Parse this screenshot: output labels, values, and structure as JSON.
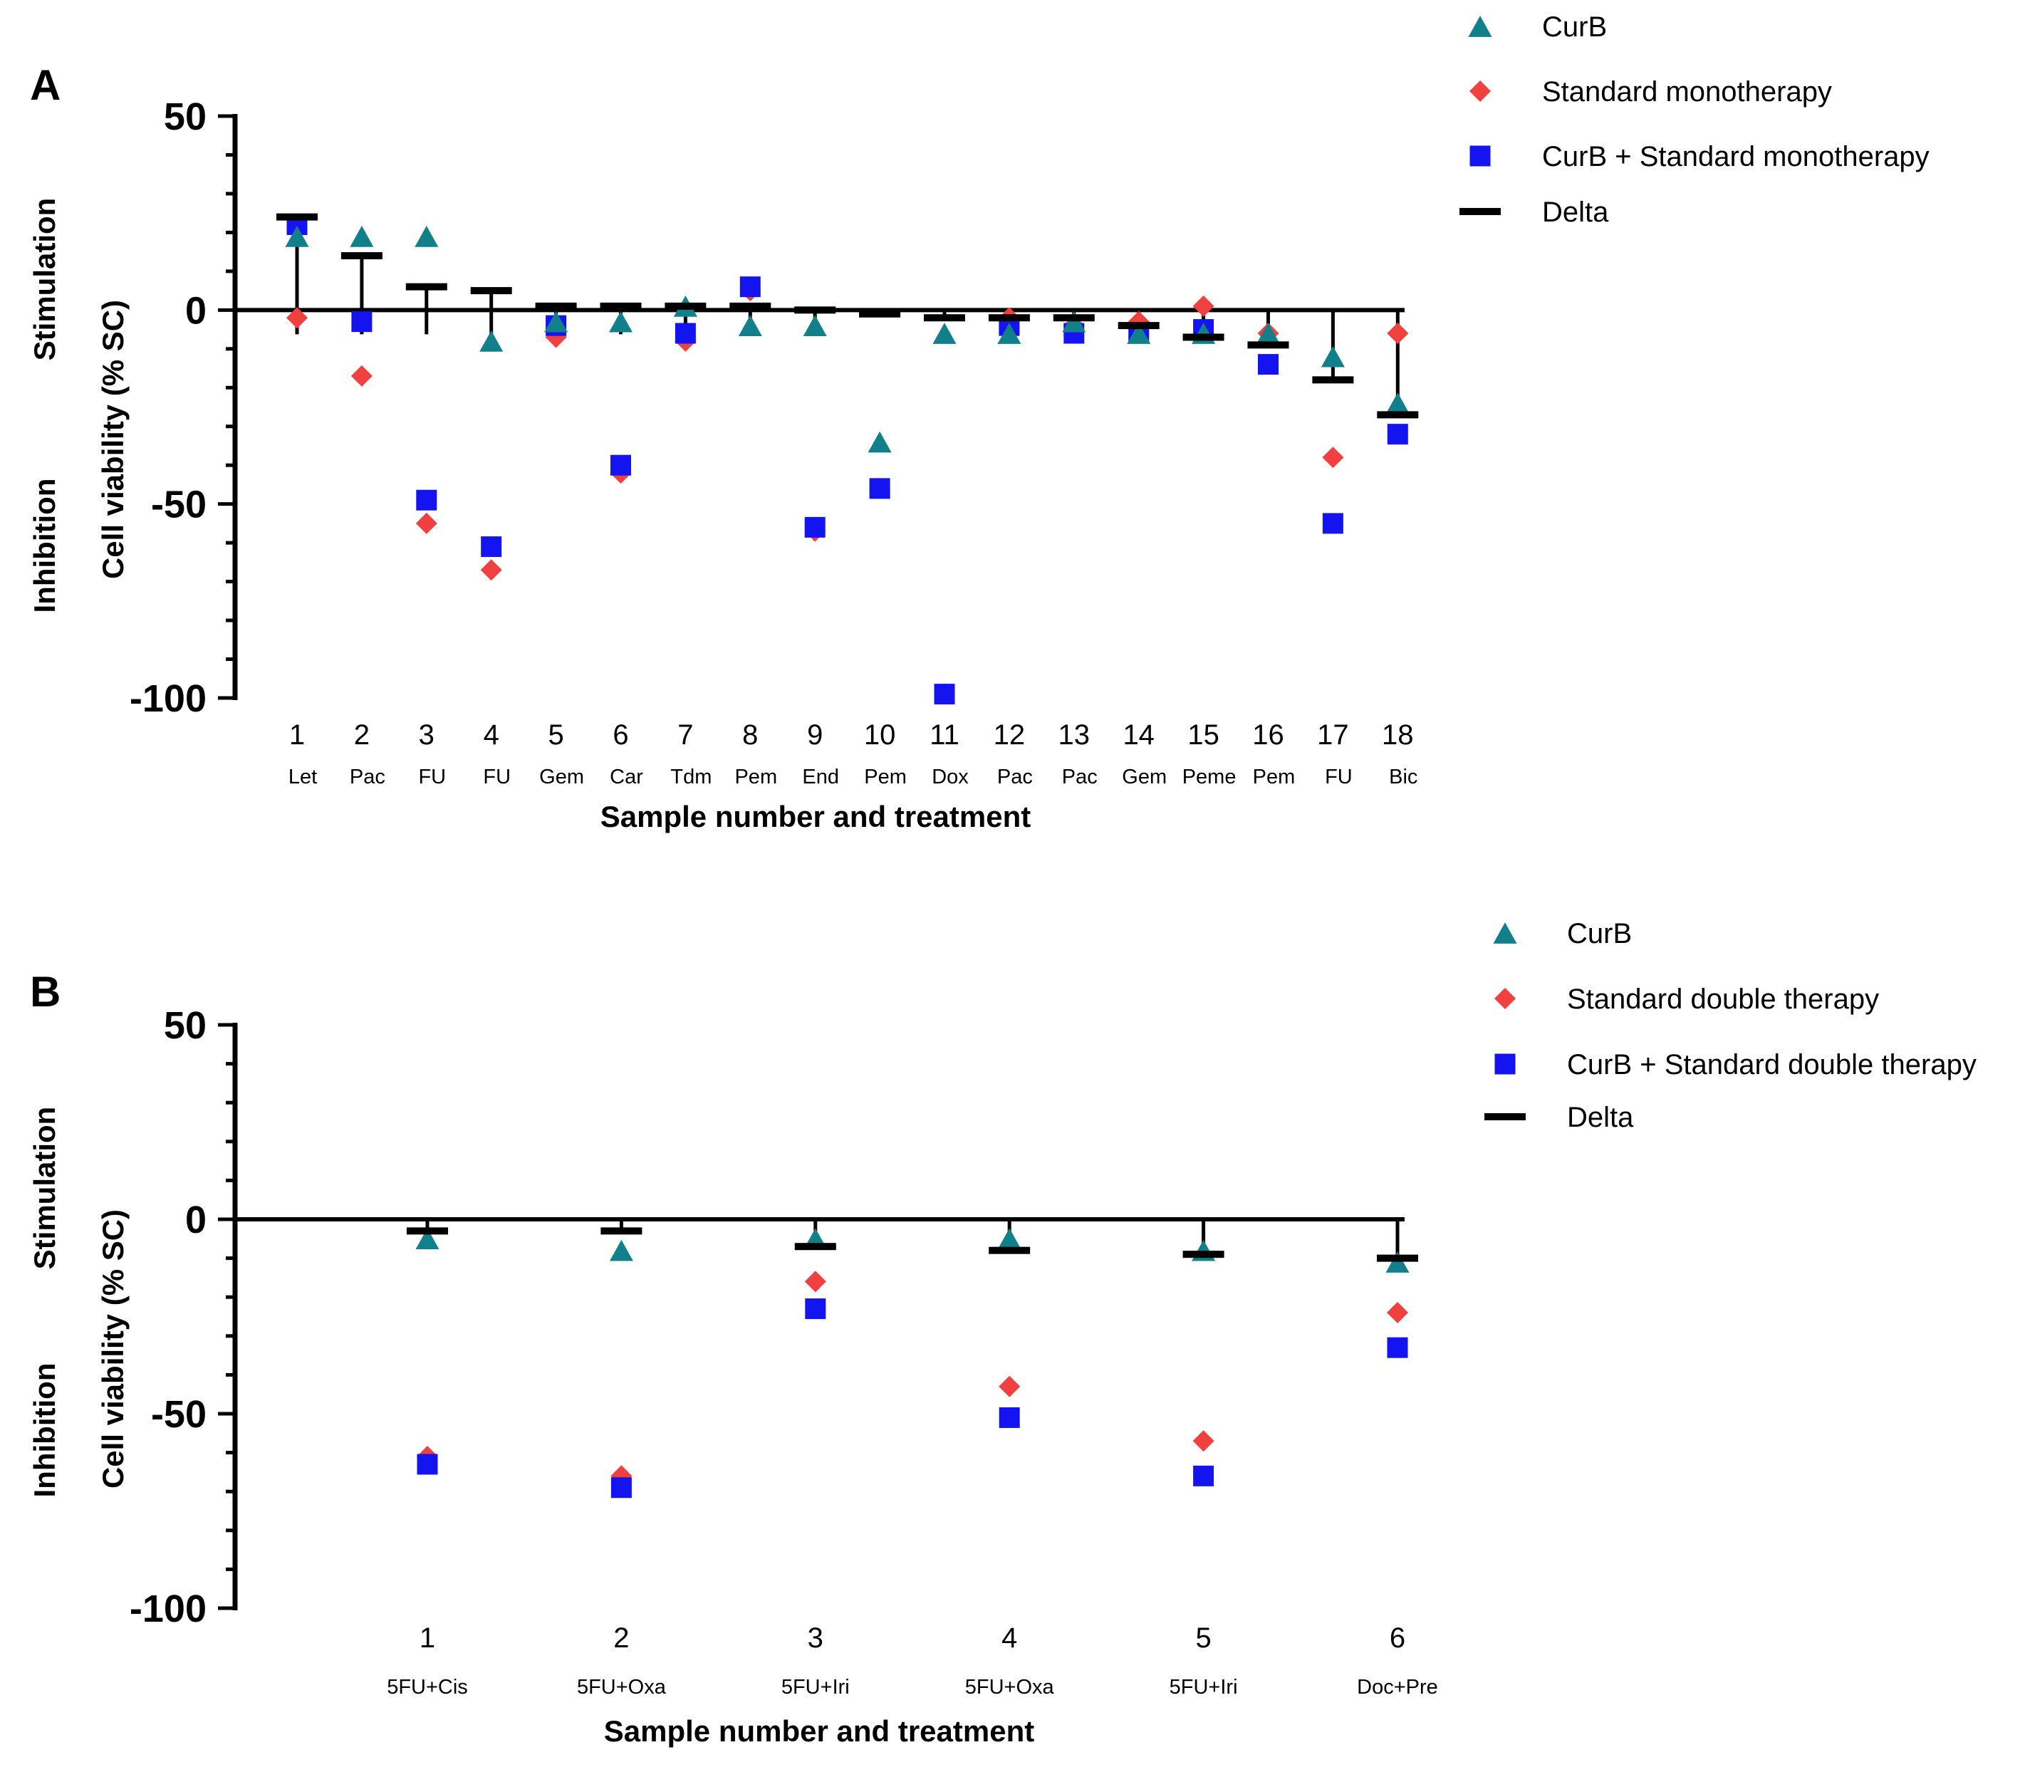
{
  "colors": {
    "curb": "#11808A",
    "standard": "#F04040",
    "combo": "#1414F0",
    "delta": "#000000"
  },
  "chart_data": [
    {
      "panel": "A",
      "type": "scatter",
      "xlabel": "Sample number and treatment",
      "ylabel": "Cell viability (% SC)",
      "side_labels": [
        "Stimulation",
        "Inhibition"
      ],
      "ylim": [
        -100,
        50
      ],
      "yticks": [
        "50",
        "0",
        "-50",
        "-100"
      ],
      "categories": [
        "1",
        "2",
        "3",
        "4",
        "5",
        "6",
        "7",
        "8",
        "9",
        "10",
        "11",
        "12",
        "13",
        "14",
        "15",
        "16",
        "17",
        "18"
      ],
      "treatments": [
        "Let",
        "Pac",
        "FU",
        "FU",
        "Gem",
        "Car",
        "Tdm",
        "Pem",
        "End",
        "Pem",
        "Dox",
        "Pac",
        "Pac",
        "Gem",
        "Peme",
        "Pem",
        "FU",
        "Bic"
      ],
      "legend": [
        "CurB",
        "Standard monotherapy",
        "CurB + Standard monotherapy",
        "Delta"
      ],
      "series": [
        {
          "name": "CurB",
          "values": [
            19,
            19,
            19,
            -8,
            -3,
            -3,
            1,
            -4,
            -4,
            -34,
            -6,
            -6,
            -3,
            -6,
            -6,
            -6,
            -12,
            -24
          ]
        },
        {
          "name": "Standard monotherapy",
          "values": [
            -2,
            -17,
            -55,
            -67,
            -7,
            -42,
            -8,
            5,
            -57,
            -46,
            -99,
            -2,
            -4,
            -3,
            1,
            -6,
            -38,
            -6
          ]
        },
        {
          "name": "CurB + Standard monotherapy",
          "values": [
            22,
            -3,
            -49,
            -61,
            -4,
            -40,
            -6,
            6,
            -56,
            -46,
            -99,
            -4,
            -6,
            -6,
            -5,
            -14,
            -55,
            -32
          ]
        },
        {
          "name": "Delta",
          "values": [
            24,
            14,
            6,
            5,
            1,
            1,
            1,
            1,
            0,
            -1,
            -2,
            -2,
            -2,
            -4,
            -7,
            -9,
            -18,
            -27
          ]
        }
      ]
    },
    {
      "panel": "B",
      "type": "scatter",
      "xlabel": "Sample number and treatment",
      "ylabel": "Cell viability (% SC)",
      "side_labels": [
        "Stimulation",
        "Inhibition"
      ],
      "ylim": [
        -100,
        50
      ],
      "yticks": [
        "50",
        "0",
        "-50",
        "-100"
      ],
      "categories": [
        "1",
        "2",
        "3",
        "4",
        "5",
        "6"
      ],
      "treatments": [
        "5FU+Cis",
        "5FU+Oxa",
        "5FU+Iri",
        "5FU+Oxa",
        "5FU+Iri",
        "Doc+Pre"
      ],
      "legend": [
        "CurB",
        "Standard double therapy",
        "CurB + Standard double therapy",
        "Delta"
      ],
      "series": [
        {
          "name": "CurB",
          "values": [
            -5,
            -8,
            -5,
            -5,
            -8,
            -11
          ]
        },
        {
          "name": "Standard double therapy",
          "values": [
            -61,
            -66,
            -16,
            -43,
            -57,
            -24
          ]
        },
        {
          "name": "CurB + Standard double therapy",
          "values": [
            -63,
            -69,
            -23,
            -51,
            -66,
            -33
          ]
        },
        {
          "name": "Delta",
          "values": [
            -3,
            -3,
            -7,
            -8,
            -9,
            -10
          ]
        }
      ]
    }
  ]
}
